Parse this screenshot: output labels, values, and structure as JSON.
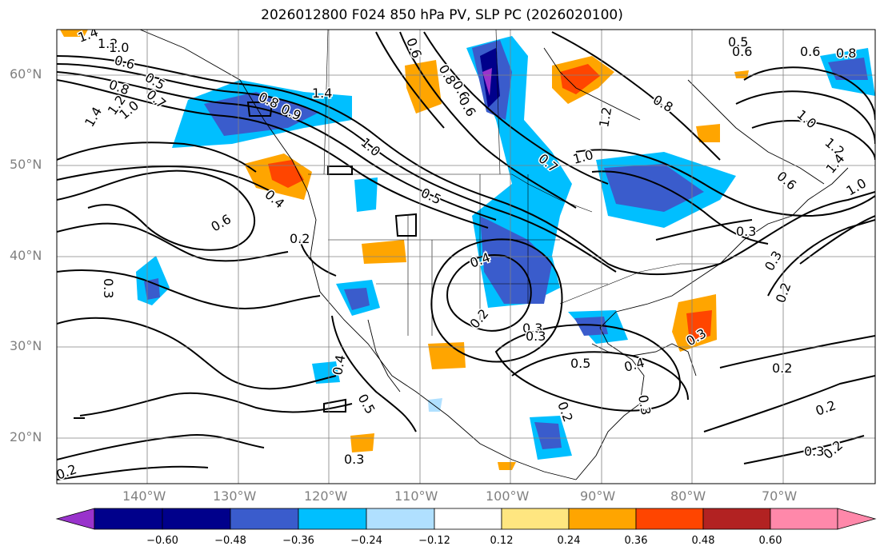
{
  "title": "2026012800 F024 850 hPa PV, SLP PC (2026020100)",
  "lat_labels": [
    "60°N",
    "50°N",
    "40°N",
    "30°N",
    "20°N"
  ],
  "lon_labels": [
    "140°W",
    "130°W",
    "120°W",
    "110°W",
    "100°W",
    "90°W",
    "80°W",
    "70°W"
  ],
  "colorbar": {
    "ticks": [
      "−0.60",
      "−0.48",
      "−0.36",
      "−0.24",
      "−0.12",
      "0.12",
      "0.24",
      "0.36",
      "0.48",
      "0.60"
    ],
    "colors": [
      "#9933cc",
      "#00008b",
      "#3a5ccc",
      "#00bfff",
      "#b0e0ff",
      "#ffffff",
      "#ffe680",
      "#ffa500",
      "#ff4500",
      "#b22222",
      "#ff88aa"
    ]
  },
  "contour_labels": [
    "1.4",
    "1.2",
    "1.0",
    "0.8",
    "0.6",
    "0.5",
    "0.4",
    "0.3",
    "0.2"
  ]
}
